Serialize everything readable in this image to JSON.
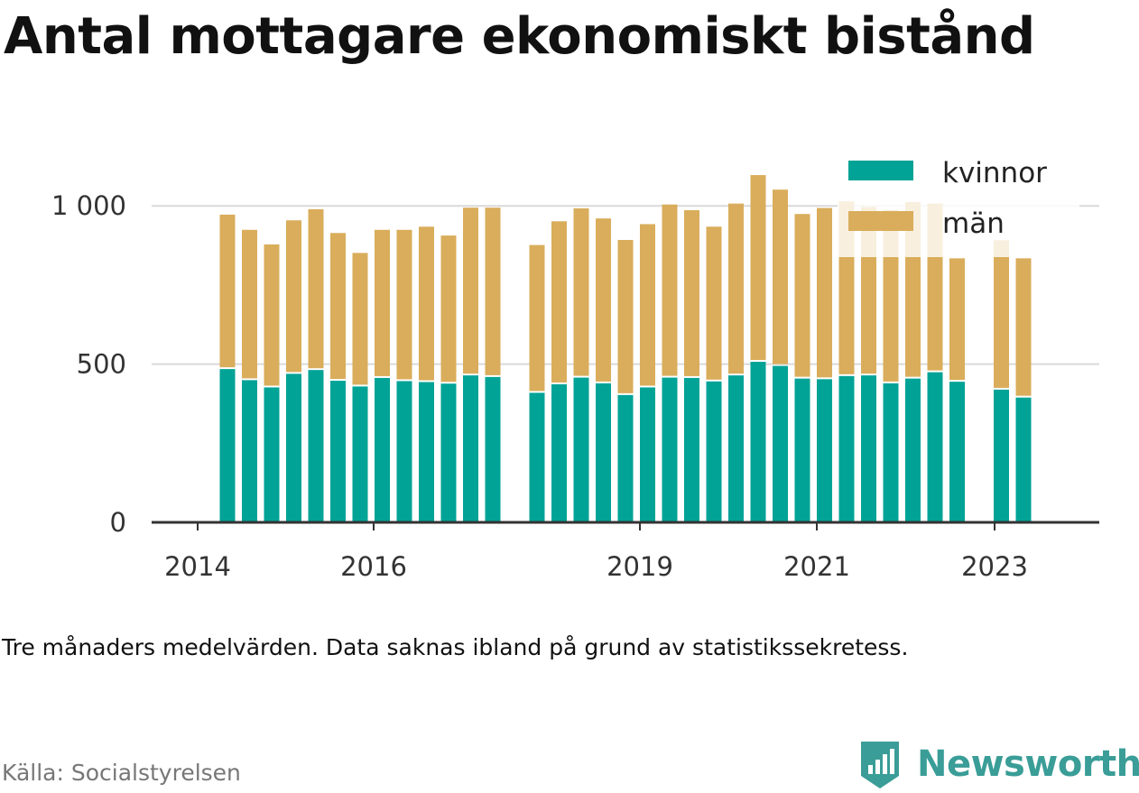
{
  "title": "Antal mottagare ekonomiskt bistånd",
  "note": "Tre månaders medelvärden. Data saknas ibland på grund av statistikssekretess.",
  "source": "Källa: Socialstyrelsen",
  "brand": "Newsworthy",
  "colors": {
    "kvinnor": "#00a396",
    "man": "#d9ad5b",
    "grid": "#d9d9d9",
    "axis": "#333333",
    "brand": "#3a9d97"
  },
  "chart_data": {
    "type": "bar",
    "stacked": true,
    "ylim": [
      0,
      1100
    ],
    "yticks": [
      0,
      500,
      1000
    ],
    "ytick_labels": [
      "0",
      "500",
      "1 000"
    ],
    "xtick_labels": [
      "2014",
      "2016",
      "2019",
      "2021",
      "2023"
    ],
    "legend_position": "top-right",
    "series": [
      {
        "name": "kvinnor",
        "values": [
          490,
          455,
          432,
          475,
          487,
          453,
          435,
          462,
          452,
          449,
          444,
          470,
          465,
          415,
          442,
          463,
          445,
          408,
          432,
          463,
          462,
          451,
          470,
          513,
          500,
          460,
          458,
          468,
          470,
          445,
          460,
          480,
          450,
          425,
          400
        ]
      },
      {
        "name": "män",
        "values": [
          488,
          475,
          452,
          485,
          508,
          467,
          422,
          468,
          478,
          491,
          468,
          530,
          535,
          467,
          515,
          535,
          521,
          490,
          516,
          547,
          530,
          489,
          543,
          590,
          557,
          520,
          541,
          552,
          532,
          548,
          558,
          533,
          390,
          472,
          440
        ]
      }
    ],
    "gaps_after": [
      12,
      32
    ]
  }
}
